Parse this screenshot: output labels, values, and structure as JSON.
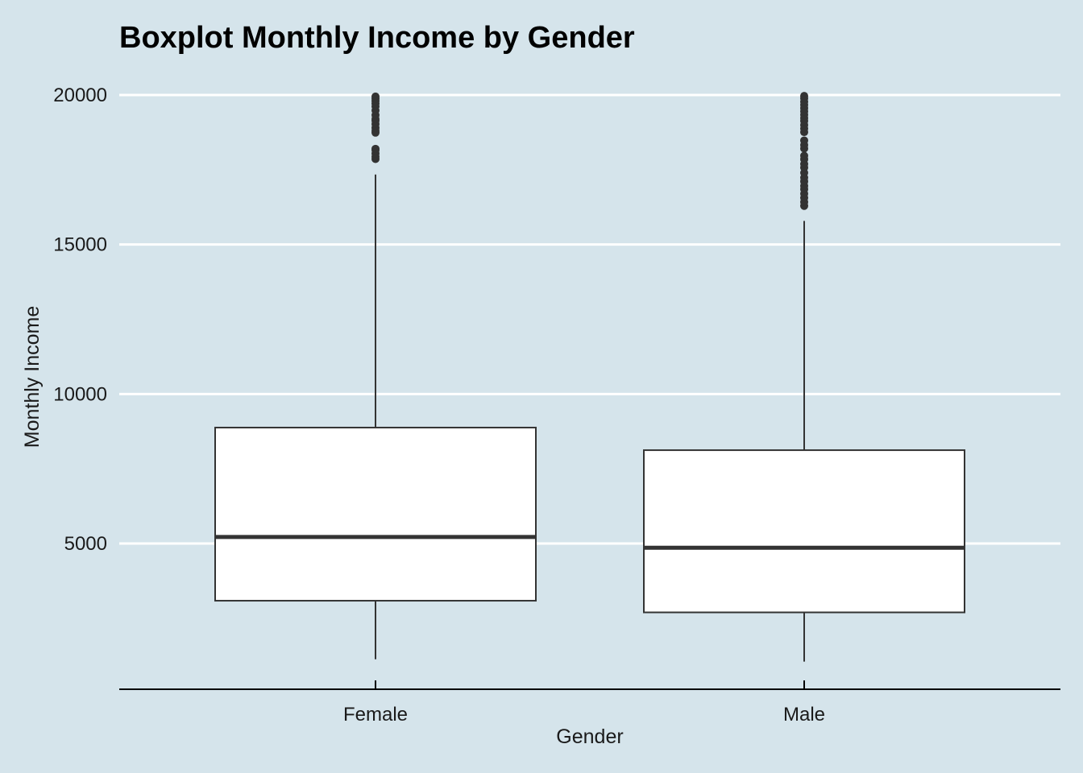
{
  "chart_data": {
    "type": "boxplot",
    "title": "Boxplot Monthly Income by Gender",
    "xlabel": "Gender",
    "ylabel": "Monthly Income",
    "categories": [
      "Female",
      "Male"
    ],
    "ylim": [
      0,
      20000
    ],
    "yticks": [
      5000,
      10000,
      15000,
      20000
    ],
    "grid": "horizontal major gridlines",
    "legend": "none",
    "colors": {
      "background": "#d5e4eb",
      "gridline": "#ffffff",
      "box_fill": "#ffffff",
      "box_stroke": "#333333",
      "outlier": "#333333"
    },
    "series": [
      {
        "whisker_low": 1129,
        "q1": 3087,
        "median": 5220,
        "q3": 8877,
        "whisker_high": 17340,
        "outliers": [
          17860,
          17940,
          18040,
          18160,
          18200,
          18740,
          18810,
          18900,
          19030,
          19140,
          19200,
          19330,
          19480,
          19620,
          19710,
          19800,
          19880,
          19950
        ]
      },
      {
        "whisker_low": 1051,
        "q1": 2697,
        "median": 4860,
        "q3": 8122,
        "whisker_high": 15790,
        "outliers": [
          16290,
          16420,
          16560,
          16700,
          16850,
          16960,
          17110,
          17240,
          17400,
          17570,
          17690,
          17850,
          17970,
          18210,
          18330,
          18480,
          18760,
          18880,
          19000,
          19130,
          19230,
          19340,
          19450,
          19560,
          19670,
          19780,
          19890,
          19970
        ]
      }
    ]
  }
}
